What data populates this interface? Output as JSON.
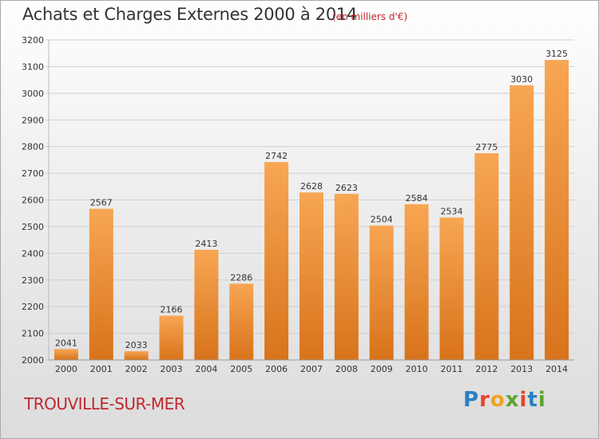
{
  "header": {
    "title": "Achats et Charges Externes 2000 à 2014",
    "unit": "(en milliers d'€)"
  },
  "footer": {
    "city": "TROUVILLE-SUR-MER",
    "logo": "Proxiti"
  },
  "colors": {
    "bar_top": "#f7a653",
    "bar_bottom": "#d8731b",
    "subtitle": "#c0282e",
    "city": "#c0282e"
  },
  "chart_data": {
    "type": "bar",
    "title": "Achats et Charges Externes 2000 à 2014",
    "subtitle": "(en milliers d'€)",
    "categories": [
      "2000",
      "2001",
      "2002",
      "2003",
      "2004",
      "2005",
      "2006",
      "2007",
      "2008",
      "2009",
      "2010",
      "2011",
      "2012",
      "2013",
      "2014"
    ],
    "values": [
      2041,
      2567,
      2033,
      2166,
      2413,
      2286,
      2742,
      2628,
      2623,
      2504,
      2584,
      2534,
      2775,
      3030,
      3125
    ],
    "ylim": [
      2000,
      3200
    ],
    "yticks": [
      2000,
      2100,
      2200,
      2300,
      2400,
      2500,
      2600,
      2700,
      2800,
      2900,
      3000,
      3100,
      3200
    ],
    "grid": true,
    "data_labels": true
  }
}
